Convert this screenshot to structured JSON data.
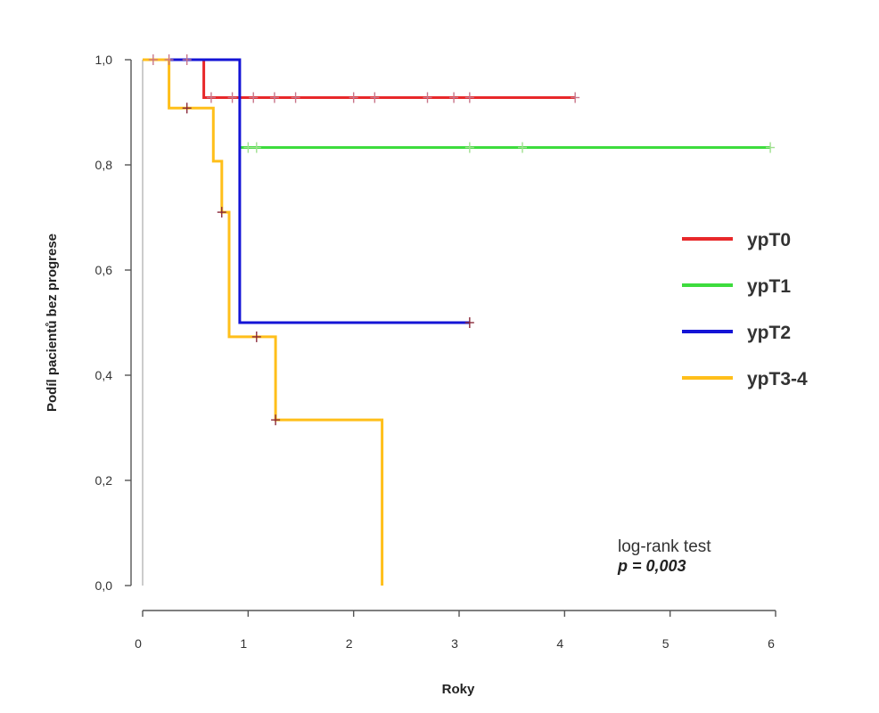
{
  "chart_data": {
    "type": "line",
    "step": true,
    "xlabel": "Roky",
    "ylabel": "Podíl pacientů bez progrese",
    "xlim": [
      0,
      6
    ],
    "ylim": [
      0,
      1
    ],
    "x_ticks": [
      "0",
      "1",
      "2",
      "3",
      "4",
      "5",
      "6"
    ],
    "y_ticks": [
      "0,0",
      "0,2",
      "0,4",
      "0,6",
      "0,8",
      "1,0"
    ],
    "grid": false,
    "legend_position": "right",
    "series": [
      {
        "name": "ypT0",
        "color": "#e8282a",
        "steps": [
          [
            0,
            1.0
          ],
          [
            0.58,
            1.0
          ],
          [
            0.58,
            0.928
          ],
          [
            4.1,
            0.928
          ]
        ],
        "censored": [
          [
            0.1,
            1.0
          ],
          [
            0.25,
            1.0
          ],
          [
            0.42,
            1.0
          ],
          [
            0.65,
            0.928
          ],
          [
            0.85,
            0.928
          ],
          [
            1.05,
            0.928
          ],
          [
            1.25,
            0.928
          ],
          [
            1.45,
            0.928
          ],
          [
            2.0,
            0.928
          ],
          [
            2.2,
            0.928
          ],
          [
            2.7,
            0.928
          ],
          [
            2.95,
            0.928
          ],
          [
            3.1,
            0.928
          ],
          [
            4.1,
            0.928
          ]
        ]
      },
      {
        "name": "ypT1",
        "color": "#3ddc3d",
        "steps": [
          [
            0.92,
            0.833
          ],
          [
            5.95,
            0.833
          ]
        ],
        "censored": [
          [
            1.0,
            0.833
          ],
          [
            1.08,
            0.833
          ],
          [
            3.1,
            0.833
          ],
          [
            3.6,
            0.833
          ],
          [
            5.95,
            0.833
          ]
        ]
      },
      {
        "name": "ypT2",
        "color": "#1414d6",
        "steps": [
          [
            0,
            1.0
          ],
          [
            0.92,
            1.0
          ],
          [
            0.92,
            0.5
          ],
          [
            3.1,
            0.5
          ]
        ],
        "censored": [
          [
            3.1,
            0.5
          ]
        ]
      },
      {
        "name": "ypT3-4",
        "color": "#ffbf1a",
        "steps": [
          [
            0,
            1.0
          ],
          [
            0.25,
            1.0
          ],
          [
            0.25,
            0.908
          ],
          [
            0.67,
            0.908
          ],
          [
            0.67,
            0.807
          ],
          [
            0.75,
            0.807
          ],
          [
            0.75,
            0.71
          ],
          [
            0.82,
            0.71
          ],
          [
            0.82,
            0.473
          ],
          [
            1.26,
            0.473
          ],
          [
            1.26,
            0.315
          ],
          [
            2.27,
            0.315
          ],
          [
            2.27,
            0.0
          ]
        ],
        "censored": [
          [
            0.42,
            0.908
          ],
          [
            0.75,
            0.71
          ],
          [
            1.08,
            0.473
          ],
          [
            1.26,
            0.315
          ]
        ]
      }
    ],
    "annotations": [
      "log-rank test",
      "p = 0,003"
    ]
  }
}
